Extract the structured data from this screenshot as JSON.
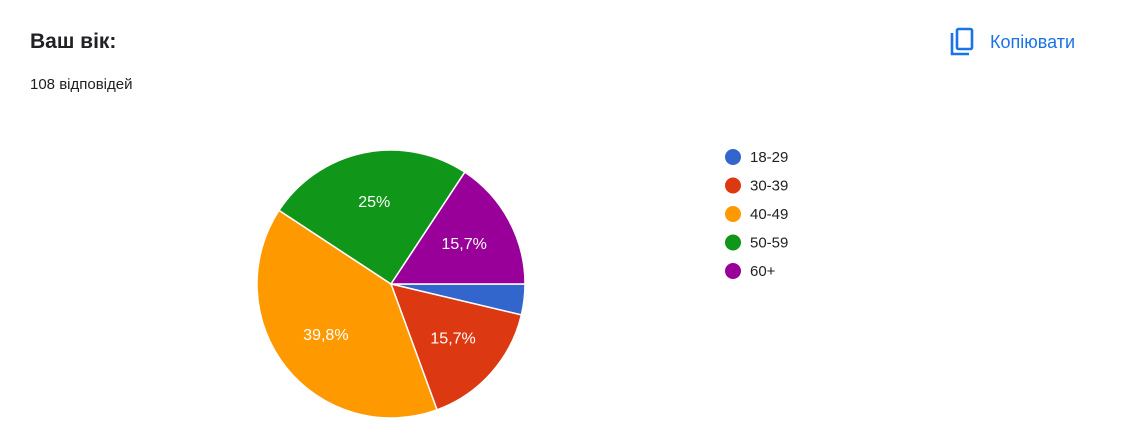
{
  "copy_button": "Копіювати",
  "chart_data": {
    "type": "pie",
    "title": "Ваш вік:",
    "subtitle": "108 відповідей",
    "categories": [
      "18-29",
      "30-39",
      "40-49",
      "50-59",
      "60+"
    ],
    "values": [
      3.7,
      15.7,
      39.8,
      25,
      15.7
    ],
    "value_labels": [
      null,
      "15,7%",
      "39,8%",
      "25%",
      "15,7%"
    ],
    "colors": [
      "#3366cc",
      "#dc3912",
      "#ff9900",
      "#109618",
      "#990099"
    ],
    "legend": "right"
  }
}
